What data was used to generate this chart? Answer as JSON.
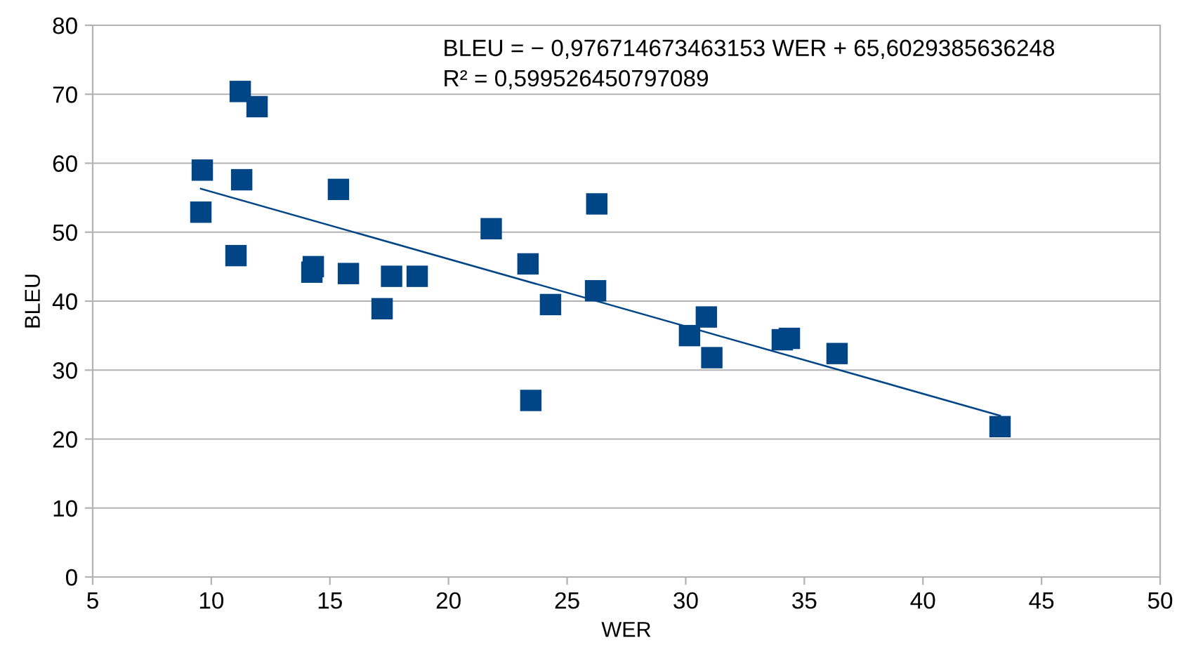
{
  "chart_data": {
    "type": "scatter",
    "xlabel": "WER",
    "ylabel": "BLEU",
    "xlim": [
      5,
      50
    ],
    "xticks": [
      5,
      10,
      15,
      20,
      25,
      30,
      35,
      40,
      45,
      50
    ],
    "ylim": [
      0,
      80
    ],
    "yticks": [
      0,
      10,
      20,
      30,
      40,
      50,
      60,
      70,
      80
    ],
    "grid": "y",
    "annotations": [
      "BLEU = − 0,976714673463153 WER + 65,6029385636248",
      "R² = 0,599526450797089"
    ],
    "series": [
      {
        "color": "#004586",
        "marker": "square",
        "x": [
          9.62,
          9.56,
          11.22,
          11.93,
          11.28,
          11.04,
          14.3,
          14.24,
          15.36,
          15.78,
          17.2,
          17.6,
          18.68,
          21.8,
          23.35,
          23.47,
          24.3,
          26.2,
          26.25,
          30.16,
          30.87,
          31.1,
          34.07,
          34.37,
          36.38,
          43.25
        ],
        "values": [
          59.0,
          52.9,
          70.4,
          68.2,
          57.6,
          46.6,
          45.0,
          44.2,
          56.2,
          44.0,
          38.9,
          43.6,
          43.6,
          50.5,
          45.4,
          25.6,
          39.5,
          41.5,
          54.1,
          35.0,
          37.7,
          31.8,
          34.4,
          34.6,
          32.4,
          21.8
        ]
      },
      {
        "type": "line",
        "color": "#004586",
        "marker": "none",
        "line_style": "solid",
        "x": [
          9.56,
          43.25
        ],
        "values": [
          56.3,
          23.4
        ]
      }
    ]
  }
}
